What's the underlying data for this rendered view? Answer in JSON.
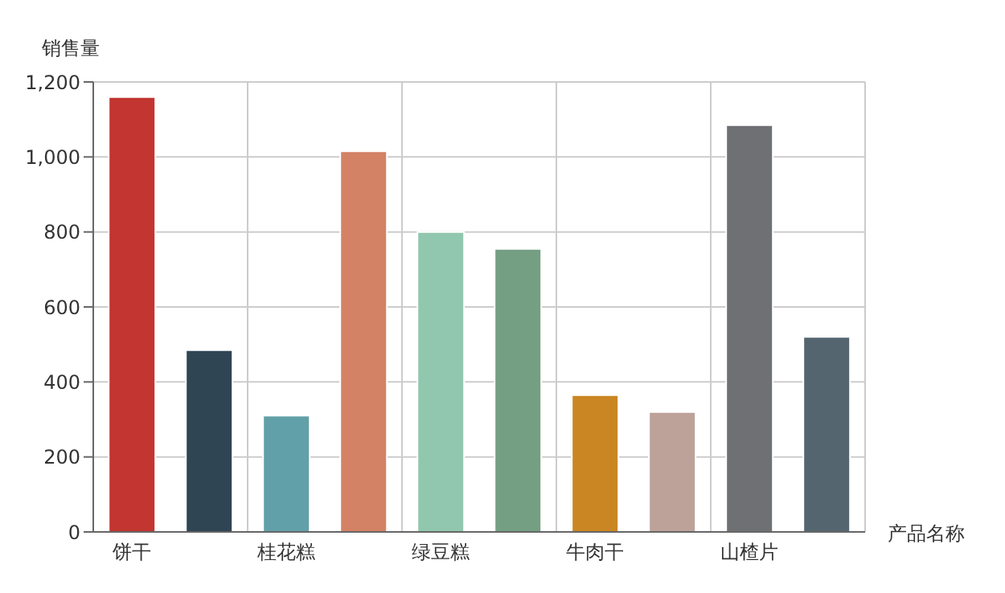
{
  "chart_data": {
    "type": "bar",
    "ylabel": "销售量",
    "xlabel": "产品名称",
    "categories": [
      "饼干",
      null,
      "桂花糕",
      null,
      "绿豆糕",
      null,
      "牛肉干",
      null,
      "山楂片",
      null
    ],
    "values": [
      1160,
      485,
      310,
      1015,
      800,
      755,
      365,
      320,
      1085,
      520
    ],
    "colors": [
      "#c23531",
      "#2f4554",
      "#61a0a8",
      "#d48265",
      "#91c7ae",
      "#749f83",
      "#ca8622",
      "#bda29a",
      "#6e7074",
      "#546570"
    ],
    "ylim": [
      0,
      1200
    ],
    "yticks": [
      0,
      200,
      400,
      600,
      800,
      {
        "value": 1000,
        "label": "1,000"
      },
      {
        "value": 1200,
        "label": "1,200"
      }
    ],
    "grid": true
  }
}
